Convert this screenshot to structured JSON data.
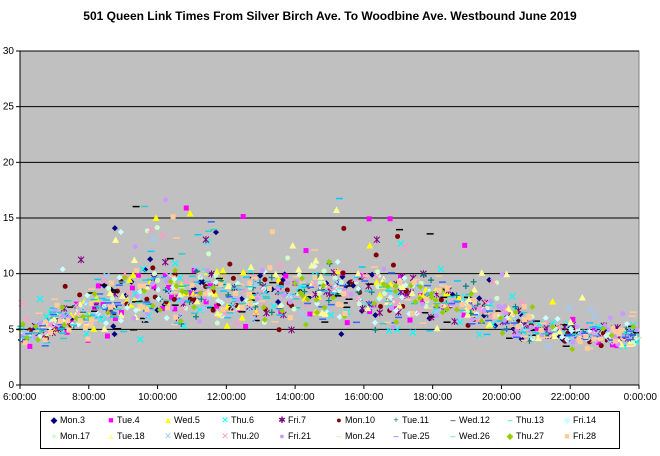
{
  "chart_data": {
    "type": "scatter",
    "title": "501 Queen Link Times From Silver Birch Ave. To Woodbine Ave. Westbound June 2019",
    "xlabel": "",
    "ylabel": "",
    "x_ticks": [
      "6:00:00",
      "8:00:00",
      "10:00:00",
      "12:00:00",
      "14:00:00",
      "16:00:00",
      "18:00:00",
      "20:00:00",
      "22:00:00",
      "0:00:00"
    ],
    "xlim_hours": [
      6,
      24
    ],
    "ylim": [
      0,
      30
    ],
    "y_ticks": [
      0,
      5,
      10,
      15,
      20,
      25,
      30
    ],
    "grid": "horizontal",
    "legend_position": "bottom",
    "background": "#c0c0c0",
    "trend_profile": {
      "hours": [
        6,
        7,
        8,
        9,
        10,
        11,
        12,
        13,
        14,
        15,
        16,
        17,
        18,
        19,
        20,
        21,
        22,
        23,
        24
      ],
      "typical_minutes": [
        4.5,
        5.5,
        6.5,
        7.5,
        8.5,
        8.5,
        8,
        8,
        8,
        8.5,
        8.5,
        8,
        8,
        7,
        6,
        5,
        4.5,
        4.5,
        4.5
      ],
      "spread_minutes": [
        0.8,
        1.2,
        1.8,
        2.2,
        2.5,
        2.5,
        2.2,
        2.0,
        2.0,
        2.5,
        2.5,
        2.2,
        2.0,
        1.6,
        1.3,
        1.0,
        0.9,
        0.9,
        0.9
      ]
    },
    "series": [
      {
        "name": "Mon.3",
        "color": "#000080",
        "marker": "◆"
      },
      {
        "name": "Tue.4",
        "color": "#ff00ff",
        "marker": "■"
      },
      {
        "name": "Wed.5",
        "color": "#ffff00",
        "marker": "▲"
      },
      {
        "name": "Thu.6",
        "color": "#00ffff",
        "marker": "✕"
      },
      {
        "name": "Fri.7",
        "color": "#800080",
        "marker": "✱"
      },
      {
        "name": "Mon.10",
        "color": "#800000",
        "marker": "●"
      },
      {
        "name": "Tue.11",
        "color": "#008080",
        "marker": "+"
      },
      {
        "name": "Wed.12",
        "color": "#000000",
        "marker": "‒"
      },
      {
        "name": "Thu.13",
        "color": "#00ccff",
        "marker": "‒"
      },
      {
        "name": "Fri.14",
        "color": "#ccffff",
        "marker": "◆"
      },
      {
        "name": "Mon.17",
        "color": "#ccffcc",
        "marker": "●"
      },
      {
        "name": "Tue.18",
        "color": "#ffff99",
        "marker": "▲"
      },
      {
        "name": "Wed.19",
        "color": "#99ccff",
        "marker": "✕"
      },
      {
        "name": "Thu.20",
        "color": "#ff99cc",
        "marker": "✕"
      },
      {
        "name": "Fri.21",
        "color": "#cc99ff",
        "marker": "●"
      },
      {
        "name": "Mon.24",
        "color": "#ffcc99",
        "marker": "‒"
      },
      {
        "name": "Tue.25",
        "color": "#3366ff",
        "marker": "‒"
      },
      {
        "name": "Wed.26",
        "color": "#33cccc",
        "marker": "‒"
      },
      {
        "name": "Thu.27",
        "color": "#99cc00",
        "marker": "◆"
      },
      {
        "name": "Fri.28",
        "color": "#ffcc99",
        "marker": "■"
      }
    ]
  }
}
